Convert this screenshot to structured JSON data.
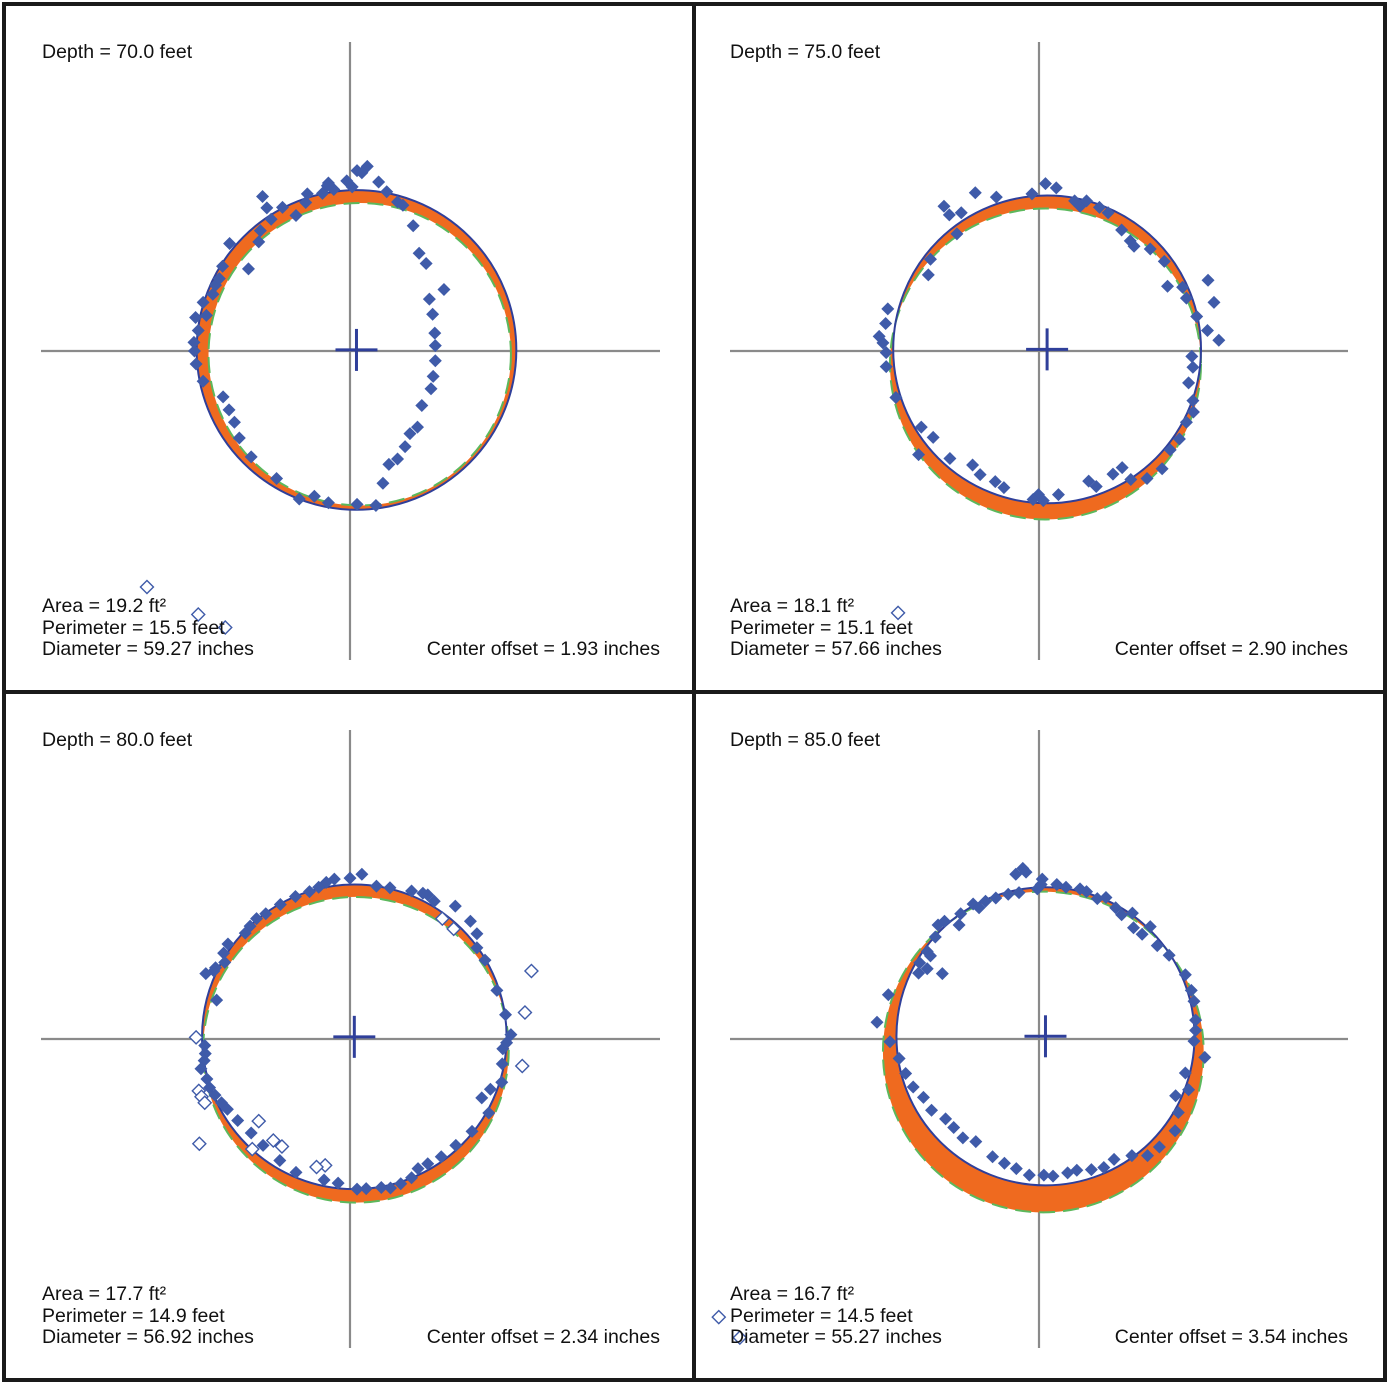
{
  "colors": {
    "measured": "#3f5ba9",
    "fitted_circle": "#2f3f9a",
    "reference_circle": "#5cb85c",
    "deviation_fill": "#ef6a1f",
    "axes": "#8a8a8a",
    "frame": "#1a1a1a"
  },
  "chart_data": [
    {
      "type": "scatter",
      "title": "Depth = 70.0 feet",
      "depth_label": "Depth = 70.0 feet",
      "area_label": "Area = 19.2 ft²",
      "perimeter_label": "Perimeter = 15.5 feet",
      "diameter_label": "Diameter = 59.27 inches",
      "center_offset_label": "Center offset = 1.93 inches",
      "depth_ft": 70.0,
      "area_ft2": 19.2,
      "perimeter_ft": 15.5,
      "diameter_in": 59.27,
      "center_offset_in": 1.93,
      "fitted_radius": 29.6,
      "fitted_center": [
        1.2,
        0.2
      ],
      "reference_radius": 28.0,
      "reference_center": [
        1.8,
        -0.6
      ],
      "points": [
        [
          1.3,
          33.4
        ],
        [
          3.2,
          34.2
        ],
        [
          5.3,
          31.3
        ],
        [
          -5.1,
          29.2
        ],
        [
          -4.0,
          31.1
        ],
        [
          -3.0,
          29.9
        ],
        [
          -0.6,
          31.5
        ],
        [
          0.4,
          30.4
        ],
        [
          2.2,
          33.0
        ],
        [
          6.8,
          29.5
        ],
        [
          8.8,
          27.6
        ],
        [
          9.8,
          27.0
        ],
        [
          11.7,
          23.2
        ],
        [
          12.8,
          18.1
        ],
        [
          14.1,
          16.2
        ],
        [
          17.4,
          11.4
        ],
        [
          14.7,
          9.6
        ],
        [
          15.3,
          6.8
        ],
        [
          15.7,
          3.3
        ],
        [
          15.8,
          1.0
        ],
        [
          15.8,
          -1.8
        ],
        [
          15.4,
          -4.7
        ],
        [
          15.0,
          -7.0
        ],
        [
          13.3,
          -10.1
        ],
        [
          12.5,
          -14.1
        ],
        [
          11.1,
          -15.3
        ],
        [
          10.2,
          -17.7
        ],
        [
          8.8,
          -20.0
        ],
        [
          7.2,
          -21.0
        ],
        [
          6.1,
          -24.5
        ],
        [
          1.3,
          -28.4
        ],
        [
          4.8,
          -28.6
        ],
        [
          -4.0,
          -28.1
        ],
        [
          -6.6,
          -26.9
        ],
        [
          -9.4,
          -27.4
        ],
        [
          -13.6,
          -23.6
        ],
        [
          -18.3,
          -19.6
        ],
        [
          -20.5,
          -16.1
        ],
        [
          -21.4,
          -13.2
        ],
        [
          -22.4,
          -10.9
        ],
        [
          -23.5,
          -8.5
        ],
        [
          -27.2,
          -5.6
        ],
        [
          -28.5,
          -2.4
        ],
        [
          -28.8,
          0.0
        ],
        [
          -28.9,
          1.6
        ],
        [
          -28.1,
          3.8
        ],
        [
          -26.6,
          6.6
        ],
        [
          -28.6,
          6.2
        ],
        [
          -27.2,
          9.0
        ],
        [
          -25.4,
          10.5
        ],
        [
          -24.9,
          12.2
        ],
        [
          -24.2,
          13.4
        ],
        [
          -23.6,
          15.7
        ],
        [
          -22.3,
          19.9
        ],
        [
          -18.8,
          15.2
        ],
        [
          -16.9,
          20.2
        ],
        [
          -16.6,
          22.3
        ],
        [
          -14.6,
          24.4
        ],
        [
          -12.5,
          26.6
        ],
        [
          -10.0,
          25.1
        ],
        [
          -8.2,
          27.5
        ],
        [
          -7.9,
          29.1
        ],
        [
          -4.2,
          30.6
        ],
        [
          -16.2,
          28.6
        ],
        [
          -15.4,
          26.5
        ]
      ],
      "outliers": [
        [
          -37.6,
          -43.7
        ],
        [
          -28.1,
          -48.8
        ],
        [
          -23.1,
          -51.2
        ]
      ]
    },
    {
      "type": "scatter",
      "title": "Depth = 75.0 feet",
      "depth_label": "Depth = 75.0 feet",
      "area_label": "Area = 18.1 ft²",
      "perimeter_label": "Perimeter = 15.1 feet",
      "diameter_label": "Diameter = 57.66 inches",
      "center_offset_label": "Center offset = 2.90 inches",
      "depth_ft": 75.0,
      "area_ft2": 18.1,
      "perimeter_ft": 15.1,
      "diameter_in": 57.66,
      "center_offset_in": 2.9,
      "fitted_radius": 28.5,
      "fitted_center": [
        1.5,
        0.3
      ],
      "reference_radius": 28.8,
      "reference_center": [
        1.2,
        -2.4
      ],
      "points": [
        [
          -11.8,
          29.3
        ],
        [
          -7.9,
          28.5
        ],
        [
          -17.6,
          26.8
        ],
        [
          -16.6,
          25.2
        ],
        [
          -14.4,
          25.6
        ],
        [
          -1.3,
          29.1
        ],
        [
          1.2,
          31.0
        ],
        [
          3.2,
          30.2
        ],
        [
          6.6,
          27.8
        ],
        [
          7.6,
          26.8
        ],
        [
          8.8,
          27.8
        ],
        [
          11.2,
          26.6
        ],
        [
          12.8,
          25.6
        ],
        [
          15.3,
          22.4
        ],
        [
          16.9,
          20.4
        ],
        [
          17.6,
          19.4
        ],
        [
          20.6,
          18.9
        ],
        [
          23.2,
          16.6
        ],
        [
          23.8,
          12.0
        ],
        [
          26.6,
          11.8
        ],
        [
          27.3,
          9.8
        ],
        [
          31.3,
          13.1
        ],
        [
          32.4,
          9.0
        ],
        [
          31.2,
          3.8
        ],
        [
          33.3,
          2.0
        ],
        [
          29.2,
          6.4
        ],
        [
          28.3,
          -1.0
        ],
        [
          28.5,
          -3.0
        ],
        [
          27.7,
          -5.9
        ],
        [
          28.5,
          -9.2
        ],
        [
          28.6,
          -11.3
        ],
        [
          27.3,
          -13.2
        ],
        [
          26.0,
          -16.3
        ],
        [
          24.3,
          -18.3
        ],
        [
          22.8,
          -21.8
        ],
        [
          20.0,
          -23.6
        ],
        [
          17.0,
          -23.8
        ],
        [
          15.4,
          -21.6
        ],
        [
          13.7,
          -22.8
        ],
        [
          10.6,
          -25.1
        ],
        [
          9.2,
          -24.1
        ],
        [
          3.6,
          -26.6
        ],
        [
          -0.1,
          -26.6
        ],
        [
          0.8,
          -27.7
        ],
        [
          -1.1,
          -27.5
        ],
        [
          -6.5,
          -25.3
        ],
        [
          -8.1,
          -24.2
        ],
        [
          -10.9,
          -22.9
        ],
        [
          -12.3,
          -21.1
        ],
        [
          -16.5,
          -19.9
        ],
        [
          -22.3,
          -19.2
        ],
        [
          -19.6,
          -16.0
        ],
        [
          -21.8,
          -14.1
        ],
        [
          -26.5,
          -8.6
        ],
        [
          -28.3,
          -2.9
        ],
        [
          -28.3,
          -0.3
        ],
        [
          -28.9,
          1.5
        ],
        [
          -29.6,
          2.7
        ],
        [
          -28.4,
          5.1
        ],
        [
          -28.0,
          7.8
        ],
        [
          -20.5,
          14.1
        ],
        [
          -20.1,
          17.0
        ],
        [
          -15.2,
          21.7
        ]
      ],
      "outliers": [
        [
          -26.1,
          -48.5
        ]
      ]
    },
    {
      "type": "scatter",
      "title": "Depth = 80.0 feet",
      "depth_label": "Depth = 80.0 feet",
      "area_label": "Area = 17.7 ft²",
      "perimeter_label": "Perimeter = 14.9 feet",
      "diameter_label": "Diameter = 56.92 inches",
      "center_offset_label": "Center offset = 2.34 inches",
      "depth_ft": 80.0,
      "area_ft2": 17.7,
      "perimeter_ft": 14.9,
      "diameter_in": 56.92,
      "center_offset_in": 2.34,
      "fitted_radius": 28.2,
      "fitted_center": [
        0.8,
        0.4
      ],
      "reference_radius": 28.3,
      "reference_center": [
        1.1,
        -2.0
      ],
      "points": [
        [
          2.2,
          30.5
        ],
        [
          0.0,
          29.8
        ],
        [
          -2.9,
          29.6
        ],
        [
          -4.4,
          29.0
        ],
        [
          -5.8,
          28.1
        ],
        [
          -7.5,
          27.3
        ],
        [
          -10.1,
          26.4
        ],
        [
          -12.9,
          24.9
        ],
        [
          -15.6,
          23.2
        ],
        [
          -17.3,
          22.3
        ],
        [
          -18.5,
          20.9
        ],
        [
          -19.4,
          19.6
        ],
        [
          -22.6,
          17.6
        ],
        [
          -23.4,
          15.9
        ],
        [
          -23.2,
          14.2
        ],
        [
          -24.9,
          13.2
        ],
        [
          -25.2,
          12.6
        ],
        [
          -26.7,
          12.1
        ],
        [
          -24.7,
          7.2
        ],
        [
          -26.9,
          -1.2
        ],
        [
          -26.8,
          -2.7
        ],
        [
          -27.0,
          -4.0
        ],
        [
          -27.6,
          -5.5
        ],
        [
          -26.5,
          -7.4
        ],
        [
          -26.0,
          -9.0
        ],
        [
          -25.0,
          -10.4
        ],
        [
          -23.8,
          -11.8
        ],
        [
          -22.7,
          -13.0
        ],
        [
          -20.8,
          -15.1
        ],
        [
          -18.3,
          -17.4
        ],
        [
          -16.1,
          -19.7
        ],
        [
          -13.0,
          -22.5
        ],
        [
          -10.0,
          -24.7
        ],
        [
          -4.8,
          -26.1
        ],
        [
          -2.2,
          -26.7
        ],
        [
          3.0,
          -27.7
        ],
        [
          1.3,
          -27.8
        ],
        [
          5.8,
          -27.5
        ],
        [
          7.5,
          -27.6
        ],
        [
          9.4,
          -26.8
        ],
        [
          11.4,
          -25.7
        ],
        [
          12.6,
          -24.0
        ],
        [
          14.4,
          -23.1
        ],
        [
          16.9,
          -21.8
        ],
        [
          19.6,
          -19.7
        ],
        [
          22.6,
          -17.1
        ],
        [
          25.7,
          -13.7
        ],
        [
          24.4,
          -10.9
        ],
        [
          26.0,
          -9.3
        ],
        [
          28.1,
          -8.0
        ],
        [
          28.2,
          -4.6
        ],
        [
          28.3,
          -1.8
        ],
        [
          29.0,
          -0.7
        ],
        [
          29.8,
          0.8
        ],
        [
          28.8,
          4.5
        ],
        [
          27.2,
          9.0
        ],
        [
          25.0,
          14.6
        ],
        [
          23.5,
          16.9
        ],
        [
          23.5,
          19.5
        ],
        [
          22.3,
          21.8
        ],
        [
          19.5,
          24.6
        ],
        [
          15.6,
          25.5
        ],
        [
          14.4,
          26.7
        ],
        [
          13.5,
          27.0
        ],
        [
          11.4,
          27.4
        ],
        [
          7.4,
          28.0
        ],
        [
          4.9,
          28.3
        ]
      ],
      "outliers": [
        [
          -28.5,
          0.3
        ],
        [
          -28.0,
          -9.6
        ],
        [
          -27.5,
          -10.7
        ],
        [
          -26.9,
          -11.8
        ],
        [
          -27.9,
          -19.4
        ],
        [
          -16.9,
          -15.2
        ],
        [
          -14.2,
          -18.8
        ],
        [
          -12.6,
          -19.9
        ],
        [
          -18.1,
          -20.4
        ],
        [
          -4.6,
          -23.4
        ],
        [
          -6.2,
          -23.7
        ],
        [
          17.1,
          22.3
        ],
        [
          19.2,
          20.4
        ],
        [
          33.6,
          12.6
        ],
        [
          32.4,
          4.9
        ],
        [
          31.9,
          -5.0
        ]
      ]
    },
    {
      "type": "scatter",
      "title": "Depth = 85.0 feet",
      "depth_label": "Depth = 85.0 feet",
      "area_label": "Area = 16.7 ft²",
      "perimeter_label": "Perimeter = 14.5 feet",
      "diameter_label": "Diameter = 55.27 inches",
      "center_offset_label": "Center offset = 3.54 inches",
      "depth_ft": 85.0,
      "area_ft2": 16.7,
      "perimeter_ft": 14.5,
      "diameter_in": 55.27,
      "center_offset_in": 3.54,
      "fitted_radius": 27.6,
      "fitted_center": [
        1.2,
        0.5
      ],
      "reference_radius": 29.7,
      "reference_center": [
        0.8,
        -2.4
      ],
      "points": [
        [
          -3.0,
          31.6
        ],
        [
          -2.4,
          30.9
        ],
        [
          -4.3,
          30.5
        ],
        [
          0.6,
          29.6
        ],
        [
          0.4,
          28.6
        ],
        [
          -0.3,
          27.8
        ],
        [
          3.3,
          28.6
        ],
        [
          5.0,
          28.1
        ],
        [
          7.6,
          27.8
        ],
        [
          8.8,
          27.3
        ],
        [
          10.8,
          26.0
        ],
        [
          12.4,
          26.2
        ],
        [
          14.2,
          24.3
        ],
        [
          15.3,
          23.0
        ],
        [
          17.3,
          23.3
        ],
        [
          17.5,
          20.6
        ],
        [
          20.6,
          20.8
        ],
        [
          19.1,
          19.4
        ],
        [
          21.9,
          17.3
        ],
        [
          24.1,
          15.5
        ],
        [
          27.1,
          11.9
        ],
        [
          28.2,
          9.0
        ],
        [
          28.7,
          7.0
        ],
        [
          29.0,
          3.5
        ],
        [
          29.0,
          1.6
        ],
        [
          28.7,
          -0.4
        ],
        [
          30.7,
          -3.4
        ],
        [
          27.1,
          -6.3
        ],
        [
          27.7,
          -9.4
        ],
        [
          25.3,
          -10.5
        ],
        [
          25.8,
          -13.6
        ],
        [
          25.2,
          -17.0
        ],
        [
          22.3,
          -20.0
        ],
        [
          20.1,
          -21.6
        ],
        [
          17.2,
          -21.6
        ],
        [
          13.9,
          -22.3
        ],
        [
          12.0,
          -23.8
        ],
        [
          9.7,
          -24.2
        ],
        [
          7.0,
          -24.3
        ],
        [
          5.3,
          -24.8
        ],
        [
          2.6,
          -25.4
        ],
        [
          0.9,
          -25.2
        ],
        [
          -1.8,
          -25.2
        ],
        [
          -4.2,
          -24.0
        ],
        [
          -6.4,
          -23.0
        ],
        [
          -8.6,
          -21.8
        ],
        [
          -11.7,
          -19.0
        ],
        [
          -14.1,
          -18.3
        ],
        [
          -15.8,
          -16.4
        ],
        [
          -17.3,
          -14.8
        ],
        [
          -19.9,
          -13.2
        ],
        [
          -21.4,
          -10.8
        ],
        [
          -23.3,
          -8.9
        ],
        [
          -24.7,
          -6.4
        ],
        [
          -25.9,
          -3.6
        ],
        [
          -27.6,
          -0.5
        ],
        [
          -30.0,
          3.1
        ],
        [
          -27.9,
          8.2
        ],
        [
          -22.3,
          12.2
        ],
        [
          -22.1,
          14.1
        ],
        [
          -20.7,
          16.2
        ],
        [
          -19.2,
          18.9
        ],
        [
          -18.7,
          21.1
        ],
        [
          -17.5,
          21.8
        ],
        [
          -14.8,
          21.1
        ],
        [
          -14.5,
          23.2
        ],
        [
          -12.2,
          25.0
        ],
        [
          -11.1,
          24.3
        ],
        [
          -9.9,
          25.5
        ],
        [
          -8.0,
          26.1
        ],
        [
          -5.7,
          26.8
        ],
        [
          -3.7,
          27.1
        ],
        [
          -20.1,
          15.4
        ],
        [
          -20.7,
          13.0
        ],
        [
          -17.9,
          12.1
        ]
      ],
      "outliers": [
        [
          -59.3,
          -51.5
        ],
        [
          -55.4,
          -55.3
        ]
      ]
    }
  ]
}
